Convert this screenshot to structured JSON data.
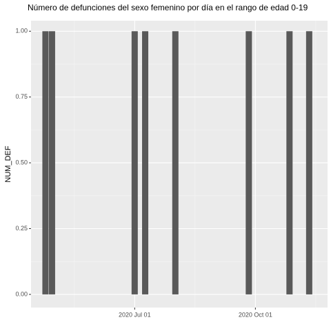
{
  "chart_data": {
    "type": "bar",
    "title": "Número de defunciones del sexo femenino por día en el rango de edad 0-19",
    "y_label": "NUM_DEF",
    "x": [
      "2020-04-24",
      "2020-04-29",
      "2020-07-01",
      "2020-07-09",
      "2020-08-01",
      "2020-09-26",
      "2020-10-27",
      "2020-11-11"
    ],
    "values": [
      1,
      1,
      1,
      1,
      1,
      1,
      1,
      1
    ],
    "color": "#595959",
    "xlim": [
      "2020-04-13",
      "2020-11-25"
    ],
    "xticks": [
      {
        "value": "2020-07-01",
        "label": "2020 Jul 01"
      },
      {
        "value": "2020-10-01",
        "label": "2020 Oct 01"
      }
    ],
    "ylim": [
      -0.05,
      1.04
    ],
    "yticks": [
      {
        "value": 0,
        "label": "0.00"
      },
      {
        "value": 0.25,
        "label": "0.25"
      },
      {
        "value": 0.5,
        "label": "0.50"
      },
      {
        "value": 0.75,
        "label": "0.75"
      },
      {
        "value": 1,
        "label": "1.00"
      }
    ],
    "grid": true
  }
}
